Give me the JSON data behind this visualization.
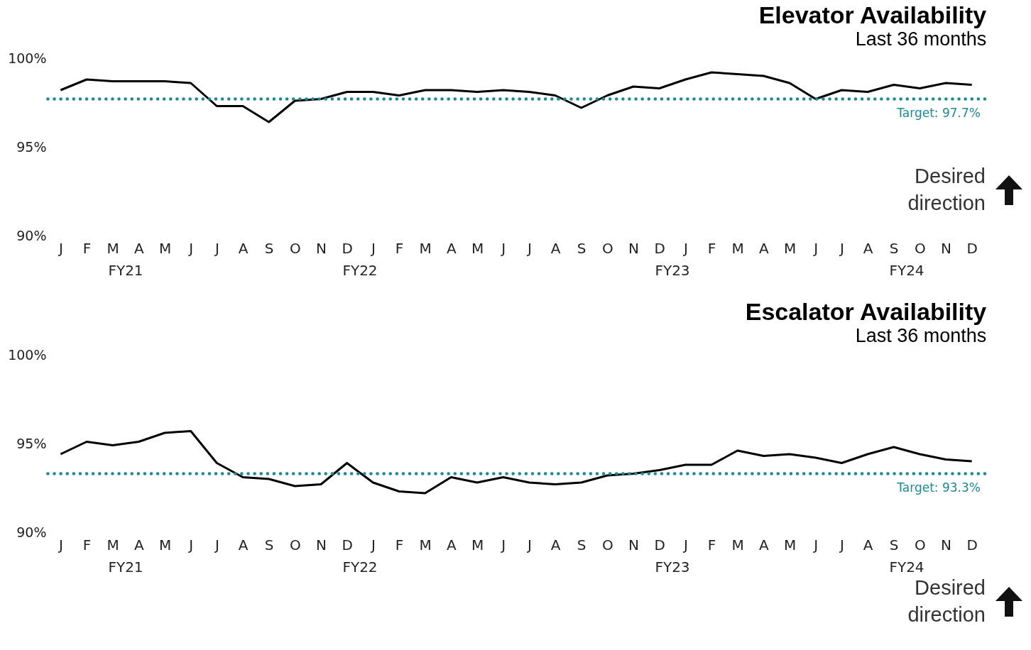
{
  "chart_data": [
    {
      "type": "line",
      "title": "Elevator Availability",
      "subtitle": "Last 36 months",
      "categories": [
        "J",
        "F",
        "M",
        "A",
        "M",
        "J",
        "J",
        "A",
        "S",
        "O",
        "N",
        "D",
        "J",
        "F",
        "M",
        "A",
        "M",
        "J",
        "J",
        "A",
        "S",
        "O",
        "N",
        "D",
        "J",
        "F",
        "M",
        "A",
        "M",
        "J",
        "J",
        "A",
        "S",
        "O",
        "N",
        "D"
      ],
      "series": [
        {
          "color": "#000000",
          "values": [
            98.2,
            98.8,
            98.7,
            98.7,
            98.7,
            98.6,
            97.3,
            97.3,
            96.4,
            97.6,
            97.7,
            98.1,
            98.1,
            97.9,
            98.2,
            98.2,
            98.1,
            98.2,
            98.1,
            97.9,
            97.2,
            97.9,
            98.4,
            98.3,
            98.8,
            99.2,
            99.1,
            99.0,
            98.6,
            97.7,
            98.2,
            98.1,
            98.5,
            98.3,
            98.6,
            98.5
          ]
        }
      ],
      "ylim": [
        90,
        100
      ],
      "yticks": [
        {
          "value": 90,
          "label": "90%"
        },
        {
          "value": 95,
          "label": "95%"
        },
        {
          "value": 100,
          "label": "100%"
        }
      ],
      "ref_lines": [
        {
          "axis": "y",
          "value": 97.7,
          "label": "Target: 97.7%",
          "color": "#1a8a96",
          "line_style": "dotted"
        }
      ],
      "annotations": [
        "FY21",
        "FY22",
        "FY23",
        "FY24",
        "Desired direction"
      ],
      "grid": false,
      "marker": "none",
      "line_style": "solid"
    },
    {
      "type": "line",
      "title": "Escalator Availability",
      "subtitle": "Last 36 months",
      "categories": [
        "J",
        "F",
        "M",
        "A",
        "M",
        "J",
        "J",
        "A",
        "S",
        "O",
        "N",
        "D",
        "J",
        "F",
        "M",
        "A",
        "M",
        "J",
        "J",
        "A",
        "S",
        "O",
        "N",
        "D",
        "J",
        "F",
        "M",
        "A",
        "M",
        "J",
        "J",
        "A",
        "S",
        "O",
        "N",
        "D"
      ],
      "series": [
        {
          "color": "#000000",
          "values": [
            94.4,
            95.1,
            94.9,
            95.1,
            95.6,
            95.7,
            93.9,
            93.1,
            93.0,
            92.6,
            92.7,
            93.9,
            92.8,
            92.3,
            92.2,
            93.1,
            92.8,
            93.1,
            92.8,
            92.7,
            92.8,
            93.2,
            93.3,
            93.5,
            93.8,
            93.8,
            94.6,
            94.3,
            94.4,
            94.2,
            93.9,
            94.4,
            94.8,
            94.4,
            94.1,
            94.0
          ]
        }
      ],
      "ylim": [
        90,
        100
      ],
      "yticks": [
        {
          "value": 90,
          "label": "90%"
        },
        {
          "value": 95,
          "label": "95%"
        },
        {
          "value": 100,
          "label": "100%"
        }
      ],
      "ref_lines": [
        {
          "axis": "y",
          "value": 93.3,
          "label": "Target: 93.3%",
          "color": "#1a8a96",
          "line_style": "dotted"
        }
      ],
      "annotations": [
        "FY21",
        "FY22",
        "FY23",
        "FY24",
        "Desired direction"
      ],
      "grid": false,
      "marker": "none",
      "line_style": "solid"
    }
  ]
}
